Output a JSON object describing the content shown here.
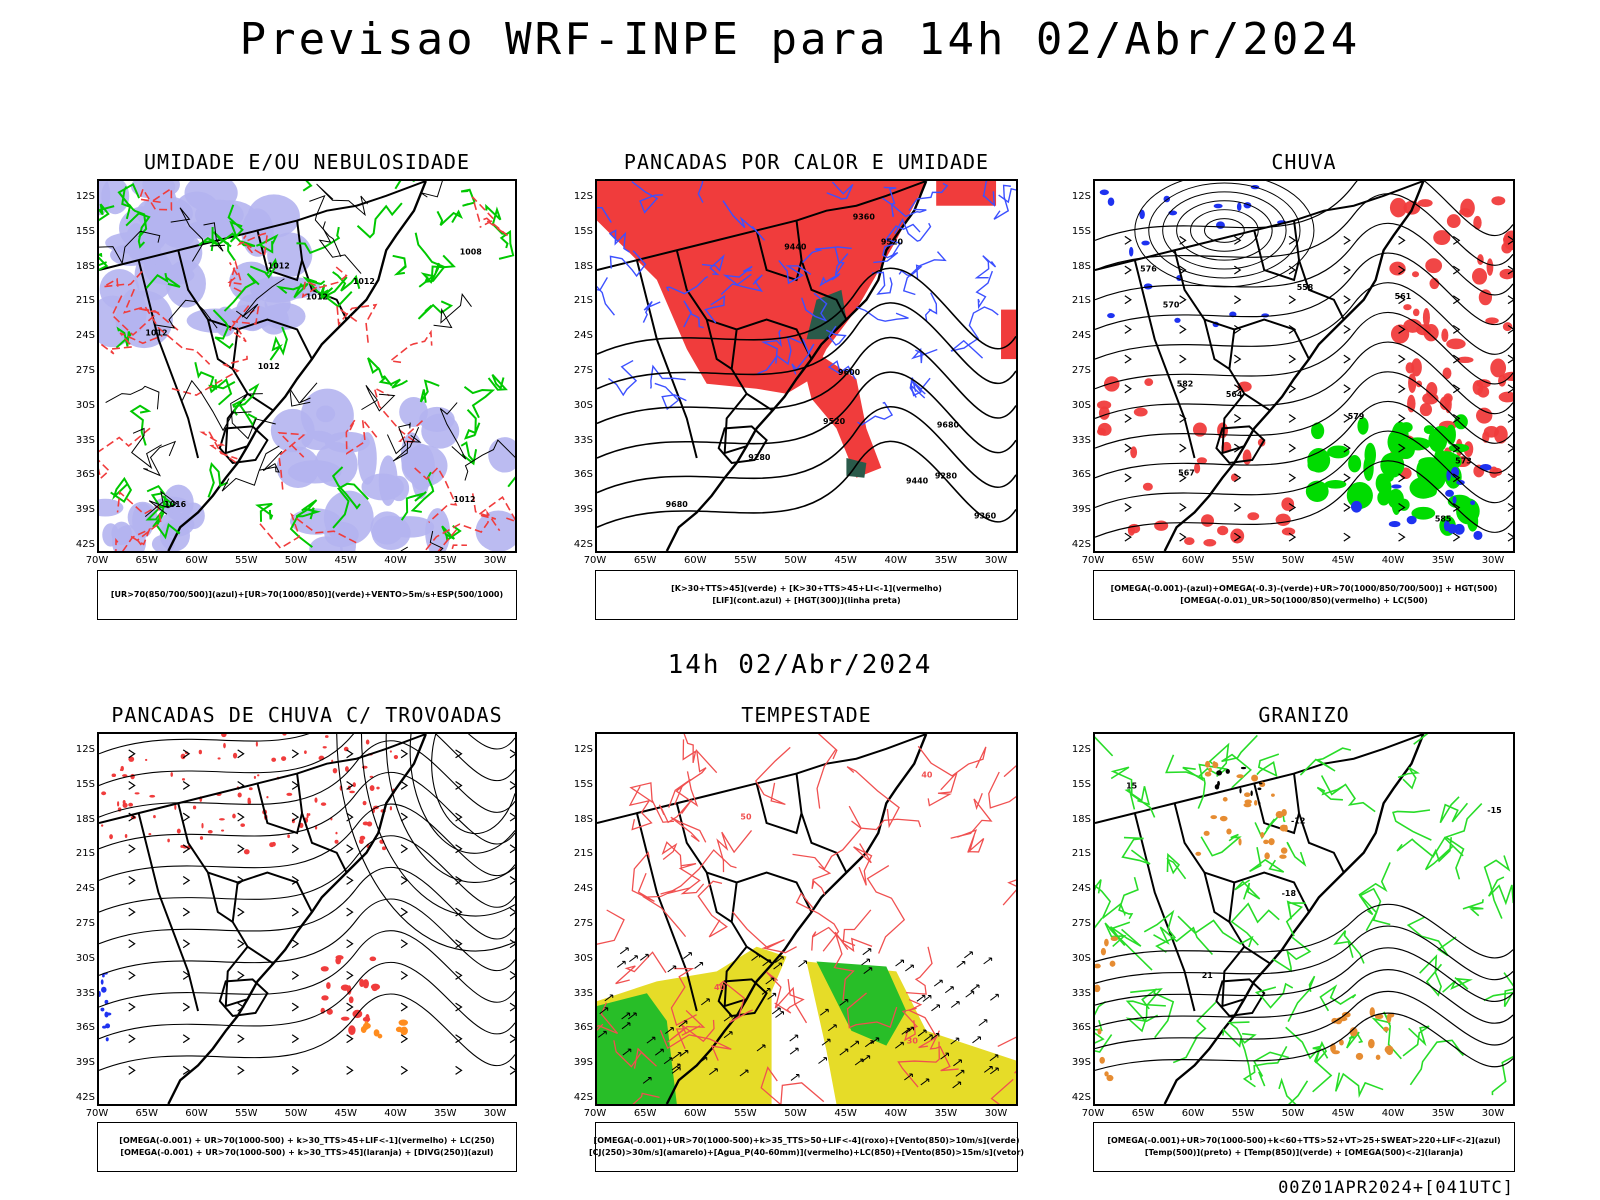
{
  "title": "Previsao WRF-INPE  para 14h 02/Abr/2024",
  "mid_title": "14h 02/Abr/2024",
  "footer": "00Z01APR2024+[041UTC]",
  "lat_labels": [
    "12S",
    "15S",
    "18S",
    "21S",
    "24S",
    "27S",
    "30S",
    "33S",
    "36S",
    "39S",
    "42S"
  ],
  "lon_labels": [
    "70W",
    "65W",
    "60W",
    "55W",
    "50W",
    "45W",
    "40W",
    "35W",
    "30W"
  ],
  "panels": [
    {
      "title": "UMIDADE E/OU NEBULOSIDADE",
      "legend": [
        "[UR>70(850/700/500)](azul)+[UR>70(1000/850)](verde)+VENTO>5m/s+ESP(500/1000)"
      ],
      "contour_labels": [
        "1012",
        "1012",
        "1008",
        "1012",
        "1012",
        "1016",
        "1012",
        "1012"
      ],
      "colors": {
        "fill": "#b4b4f0",
        "contour": "#00c800",
        "dashed": "#f03c3c"
      }
    },
    {
      "title": "PANCADAS POR CALOR E UMIDADE",
      "legend": [
        "[K>30+TTS>45](verde) + [K>30+TTS>45+LI<-1](vermelho)",
        "[LIF](cont.azul) + [HGT(300)](linha preta)"
      ],
      "contour_labels": [
        "9680",
        "9680",
        "9600",
        "9520",
        "9440",
        "9360",
        "9280",
        "9520",
        "9440",
        "9280",
        "9360"
      ],
      "colors": {
        "fill": "#f03c3c",
        "contour": "#3c50ff",
        "dark": "#2a5a4a"
      }
    },
    {
      "title": "CHUVA",
      "legend": [
        "[OMEGA(-0.001)-(azul)+OMEGA(-0.3)-(verde)+UR>70(1000/850/700/500)] + HGT(500)",
        "[OMEGA(-0.01)_UR>50(1000/850)(vermelho) + LC(500)"
      ],
      "contour_labels": [
        "585",
        "582",
        "579",
        "576",
        "573",
        "570",
        "567",
        "564",
        "561",
        "558"
      ],
      "colors": {
        "fill": "#f03c3c",
        "green": "#00dc00",
        "blue": "#1e32f0"
      }
    },
    {
      "title": "PANCADAS DE CHUVA C/ TROVOADAS",
      "legend": [
        "[OMEGA(-0.001) + UR>70(1000-500) + k>30_TTS>45+LIF<-1](vermelho) + LC(250)",
        "[OMEGA(-0.001) + UR>70(1000-500) + k>30_TTS>45](laranja) + [DIVG(250)](azul)"
      ],
      "contour_labels": [],
      "colors": {
        "fill": "#f03c3c",
        "orange": "#ff8c1e",
        "blue": "#1e32f0"
      }
    },
    {
      "title": "TEMPESTADE",
      "legend": [
        "[OMEGA(-0.001)+UR>70(1000-500)+k>35_TTS>50+LIF<-4](roxo)+[Vento(850)>10m/s](verde)",
        "[CJ(250)>30m/s](amarelo)+[Agua_P(40-60mm)](vermelho)+LC(850)+[Vento(850)>15m/s](vetor)"
      ],
      "contour_labels": [
        "40",
        "40",
        "50",
        "30"
      ],
      "colors": {
        "yellow": "#e6dc28",
        "green": "#28be28",
        "contour": "#f05050"
      }
    },
    {
      "title": "GRANIZO",
      "legend": [
        "[OMEGA(-0.001)+UR>70(1000-500)+k<60+TTS>52+VT>25+SWEAT>220+LIF<-2](azul)",
        "[Temp(500)](preto) + [Temp(850)](verde) + [OMEGA(500)<-2](laranja)"
      ],
      "contour_labels": [
        "-18",
        "-15",
        "-12",
        "21",
        "15"
      ],
      "colors": {
        "green": "#28dc28",
        "orange": "#e68c32",
        "contour": "#000000"
      }
    }
  ]
}
